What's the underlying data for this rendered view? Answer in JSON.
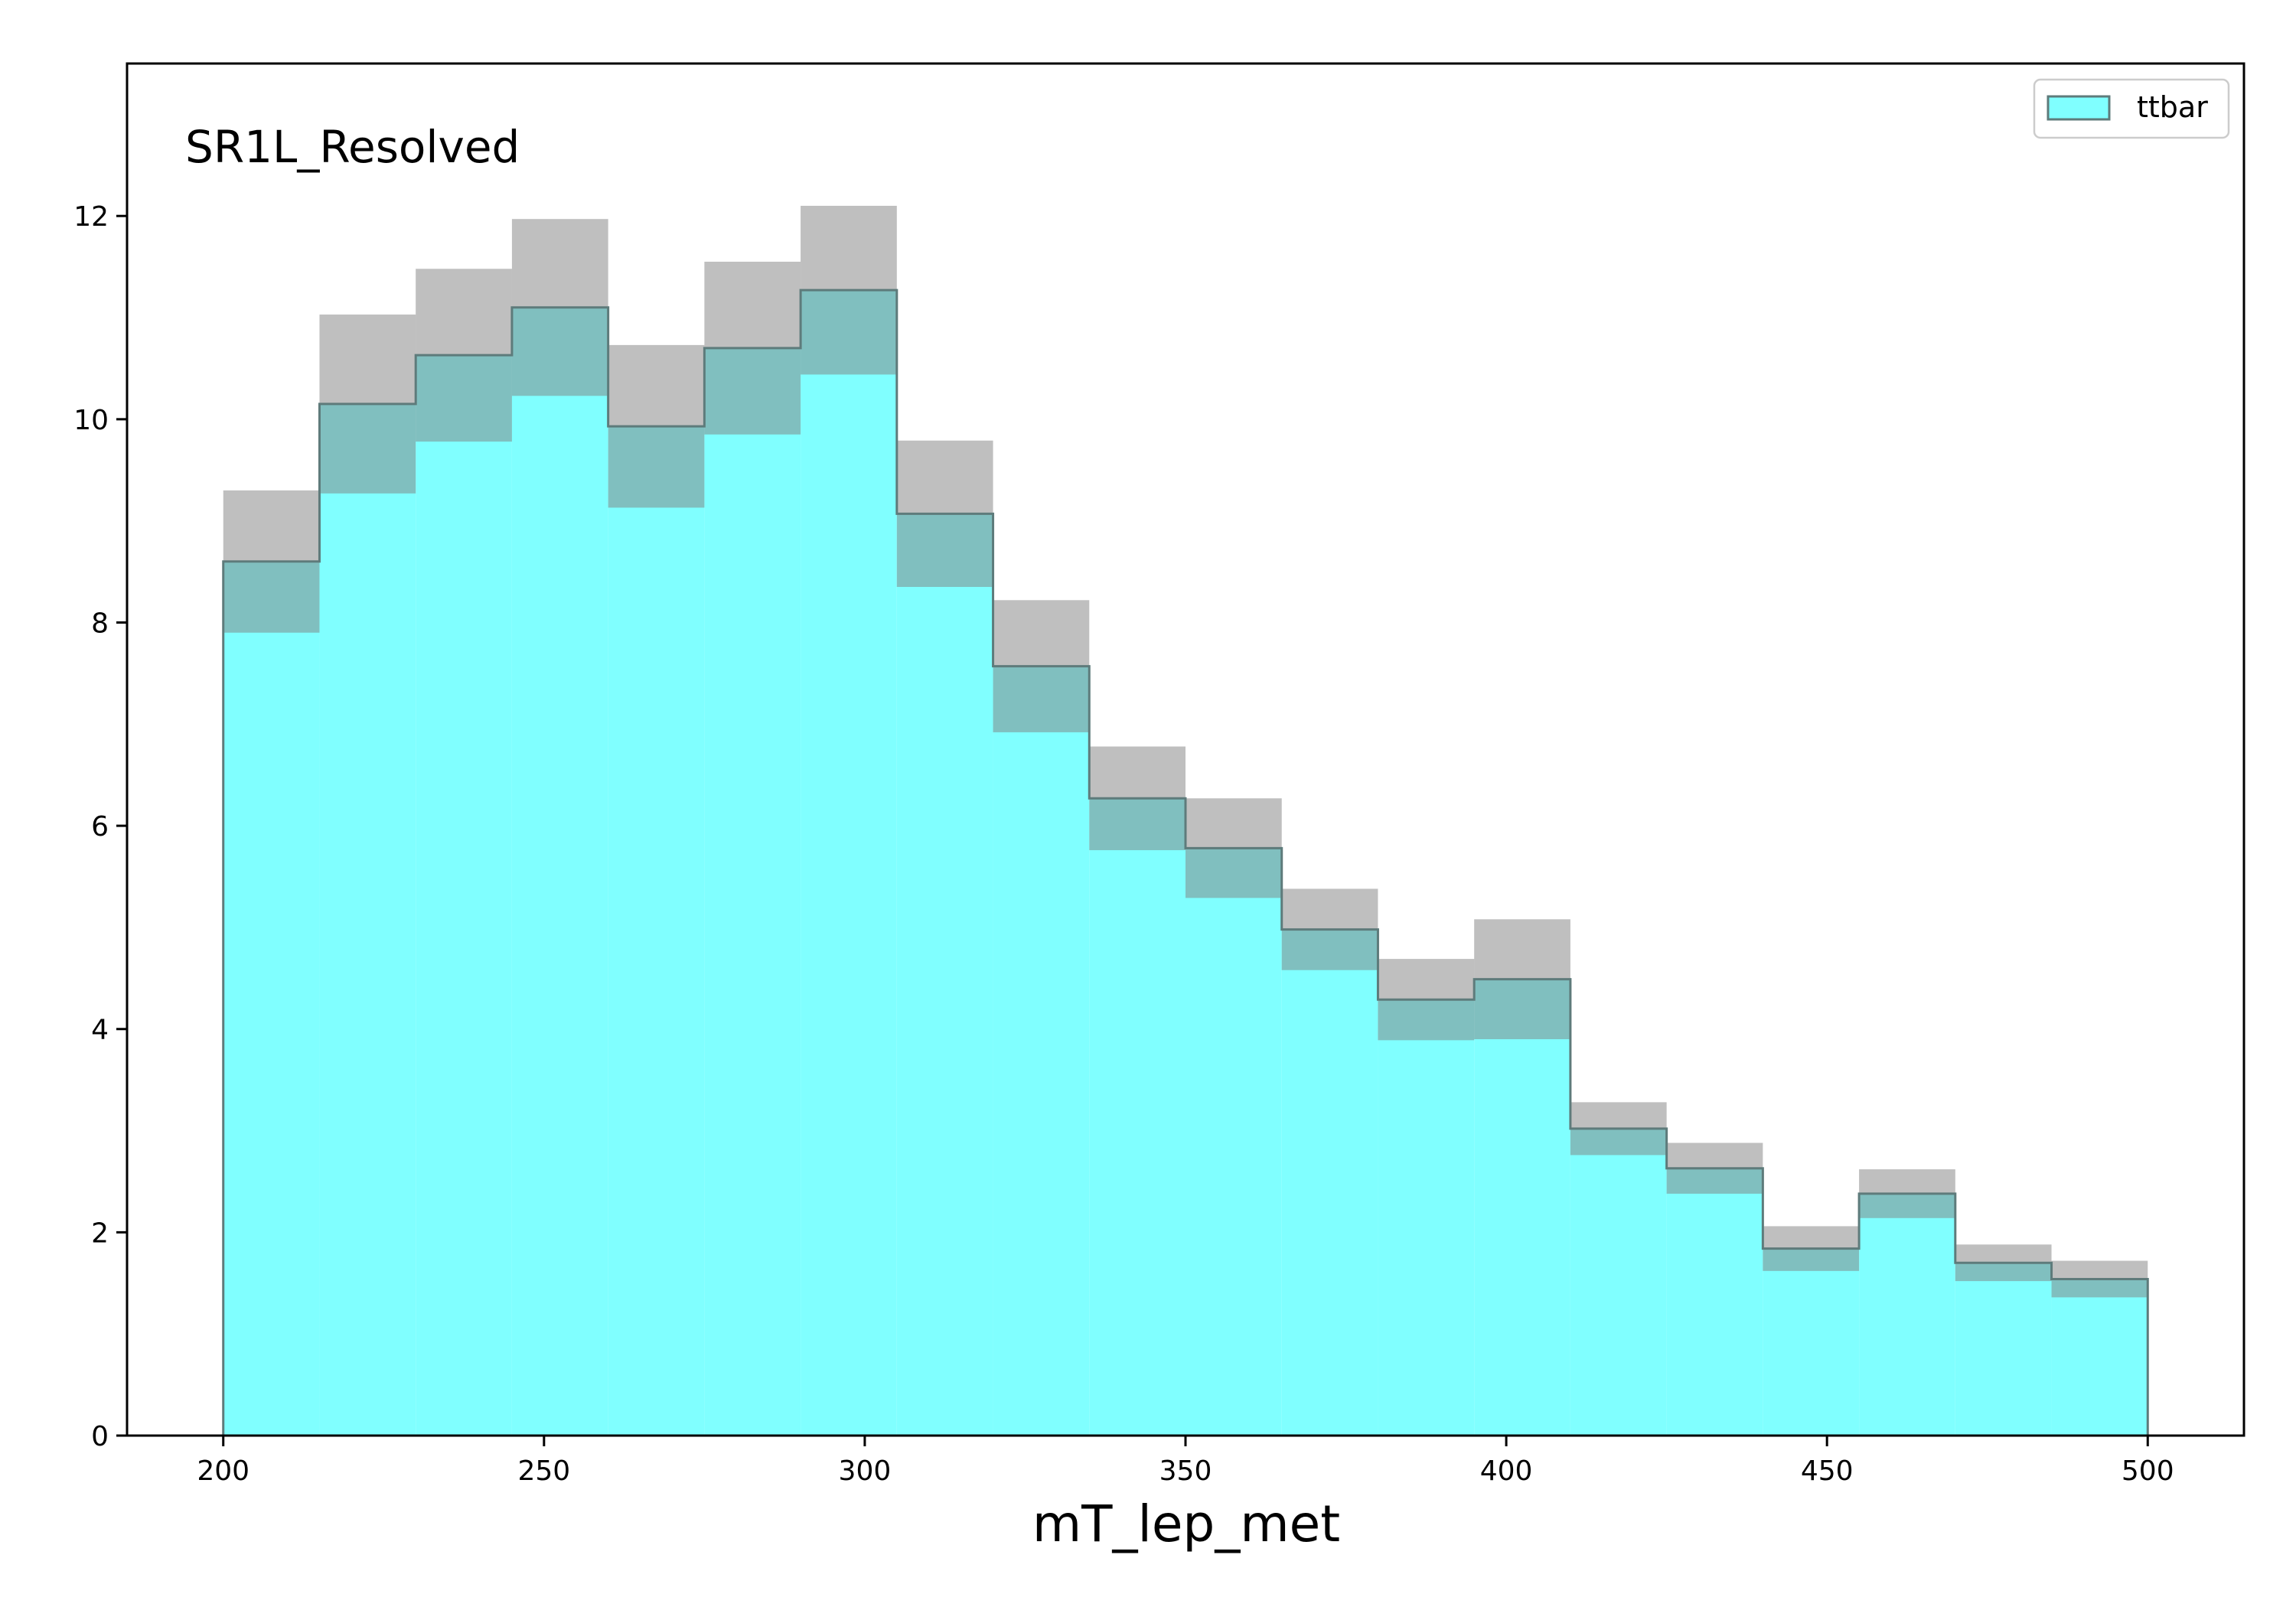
{
  "chart_data": {
    "type": "histogram",
    "annotation": "SR1L_Resolved",
    "xlabel": "mT_lep_met",
    "ylabel": "",
    "xlim": [
      185,
      515
    ],
    "ylim": [
      0,
      13.5
    ],
    "x_ticks": [
      200,
      250,
      300,
      350,
      400,
      450,
      500
    ],
    "y_ticks": [
      0,
      2,
      4,
      6,
      8,
      10,
      12
    ],
    "bin_edges": [
      200,
      215,
      230,
      245,
      260,
      275,
      290,
      305,
      320,
      335,
      350,
      365,
      380,
      395,
      410,
      425,
      440,
      455,
      470,
      485,
      500
    ],
    "series": [
      {
        "name": "ttbar",
        "color": "#80ffff",
        "edge_color": "#5e7b7b",
        "values": [
          8.6,
          10.15,
          10.63,
          11.1,
          9.93,
          10.7,
          11.27,
          9.07,
          7.57,
          6.27,
          5.78,
          4.98,
          4.29,
          4.49,
          3.02,
          2.63,
          1.84,
          2.38,
          1.7,
          1.54
        ],
        "uncertainty": [
          0.7,
          0.88,
          0.85,
          0.87,
          0.8,
          0.85,
          0.83,
          0.72,
          0.65,
          0.51,
          0.49,
          0.4,
          0.4,
          0.59,
          0.26,
          0.25,
          0.22,
          0.24,
          0.18,
          0.18
        ]
      }
    ],
    "uncertainty_color": "#808080",
    "legend": {
      "position": "top-right",
      "entries": [
        "ttbar"
      ]
    },
    "grid": false
  }
}
